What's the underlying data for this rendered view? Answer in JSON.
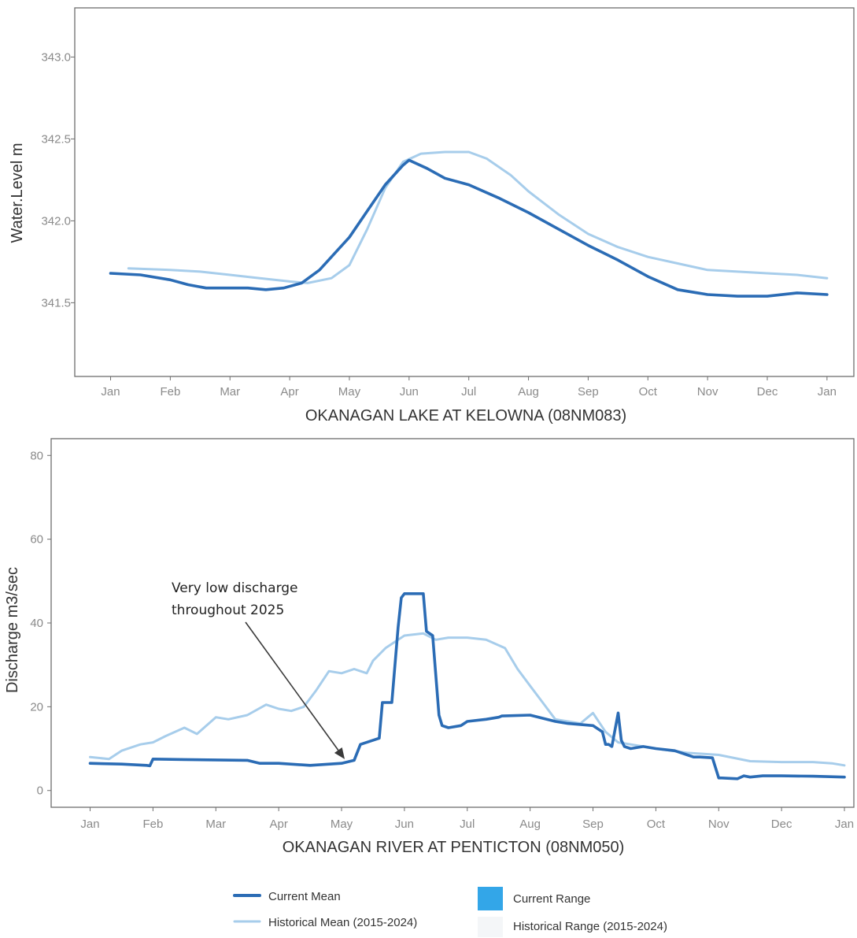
{
  "legend": {
    "items": [
      {
        "label": "Current Mean",
        "kind": "line",
        "color": "#2b6cb5"
      },
      {
        "label": "Current Range",
        "kind": "box",
        "color": "#33a6e8"
      },
      {
        "label": "Historical Mean (2015-2024)",
        "kind": "line",
        "color": "#a7cdeb"
      },
      {
        "label": "Historical Range (2015-2024)",
        "kind": "box",
        "color": "#f4f6f8"
      }
    ]
  },
  "chart_data": [
    {
      "type": "line",
      "title": "OKANAGAN LAKE AT KELOWNA (08NM083)",
      "xlabel": "OKANAGAN LAKE AT KELOWNA (08NM083)",
      "ylabel": "Water.Level m",
      "x_ticks": [
        "Jan",
        "Feb",
        "Mar",
        "Apr",
        "May",
        "Jun",
        "Jul",
        "Aug",
        "Sep",
        "Oct",
        "Nov",
        "Dec",
        "Jan"
      ],
      "y_ticks": [
        "341.5",
        "342.0",
        "342.5",
        "343.0"
      ],
      "ylim": [
        341.05,
        343.3
      ],
      "xlim_months": [
        -0.6,
        12.45
      ],
      "series": [
        {
          "name": "Current Mean",
          "color": "#2b6cb5",
          "x_months": [
            0.0,
            0.5,
            1.0,
            1.3,
            1.6,
            1.9,
            2.3,
            2.6,
            2.9,
            3.2,
            3.5,
            3.8,
            4.0,
            4.3,
            4.6,
            4.9,
            5.0,
            5.3,
            5.6,
            6.0,
            6.5,
            7.0,
            7.5,
            8.0,
            8.5,
            9.0,
            9.5,
            10.0,
            10.5,
            11.0,
            11.5,
            12.0
          ],
          "y": [
            341.68,
            341.67,
            341.64,
            341.61,
            341.59,
            341.59,
            341.59,
            341.58,
            341.59,
            341.62,
            341.7,
            341.82,
            341.9,
            342.06,
            342.22,
            342.34,
            342.37,
            342.32,
            342.26,
            342.22,
            342.14,
            342.05,
            341.95,
            341.85,
            341.76,
            341.66,
            341.58,
            341.55,
            341.54,
            341.54,
            341.56,
            341.55
          ]
        },
        {
          "name": "Historical Mean (2015-2024)",
          "color": "#a7cdeb",
          "x_months": [
            0.3,
            1.0,
            1.5,
            2.0,
            2.5,
            3.0,
            3.3,
            3.7,
            4.0,
            4.3,
            4.6,
            4.9,
            5.2,
            5.6,
            6.0,
            6.3,
            6.7,
            7.0,
            7.5,
            8.0,
            8.5,
            9.0,
            9.5,
            10.0,
            10.5,
            11.0,
            11.5,
            12.0
          ],
          "y": [
            341.71,
            341.7,
            341.69,
            341.67,
            341.65,
            341.63,
            341.62,
            341.65,
            341.73,
            341.95,
            342.2,
            342.36,
            342.41,
            342.42,
            342.42,
            342.38,
            342.28,
            342.18,
            342.04,
            341.92,
            341.84,
            341.78,
            341.74,
            341.7,
            341.69,
            341.68,
            341.67,
            341.65
          ]
        }
      ]
    },
    {
      "type": "line",
      "title": "OKANAGAN RIVER AT PENTICTON (08NM050)",
      "xlabel": "OKANAGAN RIVER AT PENTICTON (08NM050)",
      "ylabel": "Discharge m3/sec",
      "x_ticks": [
        "Jan",
        "Feb",
        "Mar",
        "Apr",
        "May",
        "Jun",
        "Jul",
        "Aug",
        "Sep",
        "Oct",
        "Nov",
        "Dec",
        "Jan"
      ],
      "y_ticks": [
        "0",
        "20",
        "40",
        "60",
        "80"
      ],
      "ylim": [
        -4,
        84
      ],
      "xlim_months": [
        -0.62,
        12.15
      ],
      "annotation": {
        "text_lines": [
          "Very low discharge",
          "throughout 2025"
        ],
        "points_to_month": 4.05,
        "points_to_value": 7.5
      },
      "series": [
        {
          "name": "Current Mean",
          "color": "#2b6cb5",
          "x_months": [
            0.0,
            0.5,
            0.9,
            0.95,
            1.0,
            1.5,
            2.0,
            2.5,
            2.7,
            3.0,
            3.5,
            4.0,
            4.2,
            4.3,
            4.6,
            4.65,
            4.8,
            4.9,
            4.95,
            5.0,
            5.3,
            5.35,
            5.45,
            5.55,
            5.6,
            5.7,
            5.9,
            6.0,
            6.3,
            6.5,
            6.55,
            7.0,
            7.4,
            7.6,
            8.0,
            8.15,
            8.2,
            8.25,
            8.3,
            8.4,
            8.45,
            8.5,
            8.6,
            8.8,
            9.0,
            9.3,
            9.5,
            9.6,
            9.7,
            9.9,
            10.0,
            10.05,
            10.3,
            10.4,
            10.5,
            10.7,
            11.0,
            11.5,
            12.0
          ],
          "y": [
            6.5,
            6.3,
            6.0,
            5.9,
            7.5,
            7.4,
            7.3,
            7.2,
            6.5,
            6.5,
            6.0,
            6.5,
            7.2,
            11.0,
            12.5,
            21.0,
            21.0,
            39.0,
            46.0,
            47.0,
            47.0,
            38.0,
            37.0,
            18.0,
            15.5,
            15.0,
            15.5,
            16.5,
            17.0,
            17.5,
            17.8,
            18.0,
            16.5,
            16.0,
            15.5,
            14.0,
            11.0,
            11.0,
            10.5,
            18.5,
            12.0,
            10.5,
            10.0,
            10.5,
            10.0,
            9.5,
            8.5,
            8.0,
            8.0,
            7.8,
            3.0,
            3.0,
            2.8,
            3.5,
            3.2,
            3.5,
            3.5,
            3.4,
            3.2
          ]
        },
        {
          "name": "Historical Mean (2015-2024)",
          "color": "#a7cdeb",
          "x_months": [
            0.0,
            0.3,
            0.5,
            0.8,
            1.0,
            1.2,
            1.5,
            1.7,
            2.0,
            2.2,
            2.5,
            2.8,
            3.0,
            3.2,
            3.4,
            3.6,
            3.8,
            4.0,
            4.2,
            4.4,
            4.5,
            4.7,
            4.9,
            5.0,
            5.3,
            5.5,
            5.7,
            6.0,
            6.3,
            6.6,
            6.8,
            7.0,
            7.2,
            7.4,
            7.6,
            7.8,
            8.0,
            8.2,
            8.4,
            8.6,
            9.0,
            9.5,
            10.0,
            10.5,
            11.0,
            11.5,
            11.8,
            12.0
          ],
          "y": [
            8.0,
            7.5,
            9.5,
            11.0,
            11.5,
            13.0,
            15.0,
            13.5,
            17.5,
            17.0,
            18.0,
            20.5,
            19.5,
            19.0,
            20.0,
            24.0,
            28.5,
            28.0,
            29.0,
            28.0,
            31.0,
            34.0,
            36.0,
            37.0,
            37.5,
            36.0,
            36.5,
            36.5,
            36.0,
            34.0,
            29.0,
            25.0,
            21.0,
            17.0,
            16.5,
            16.0,
            18.5,
            14.0,
            11.5,
            11.0,
            10.0,
            9.0,
            8.5,
            7.0,
            6.8,
            6.8,
            6.5,
            6.0
          ]
        }
      ]
    }
  ]
}
